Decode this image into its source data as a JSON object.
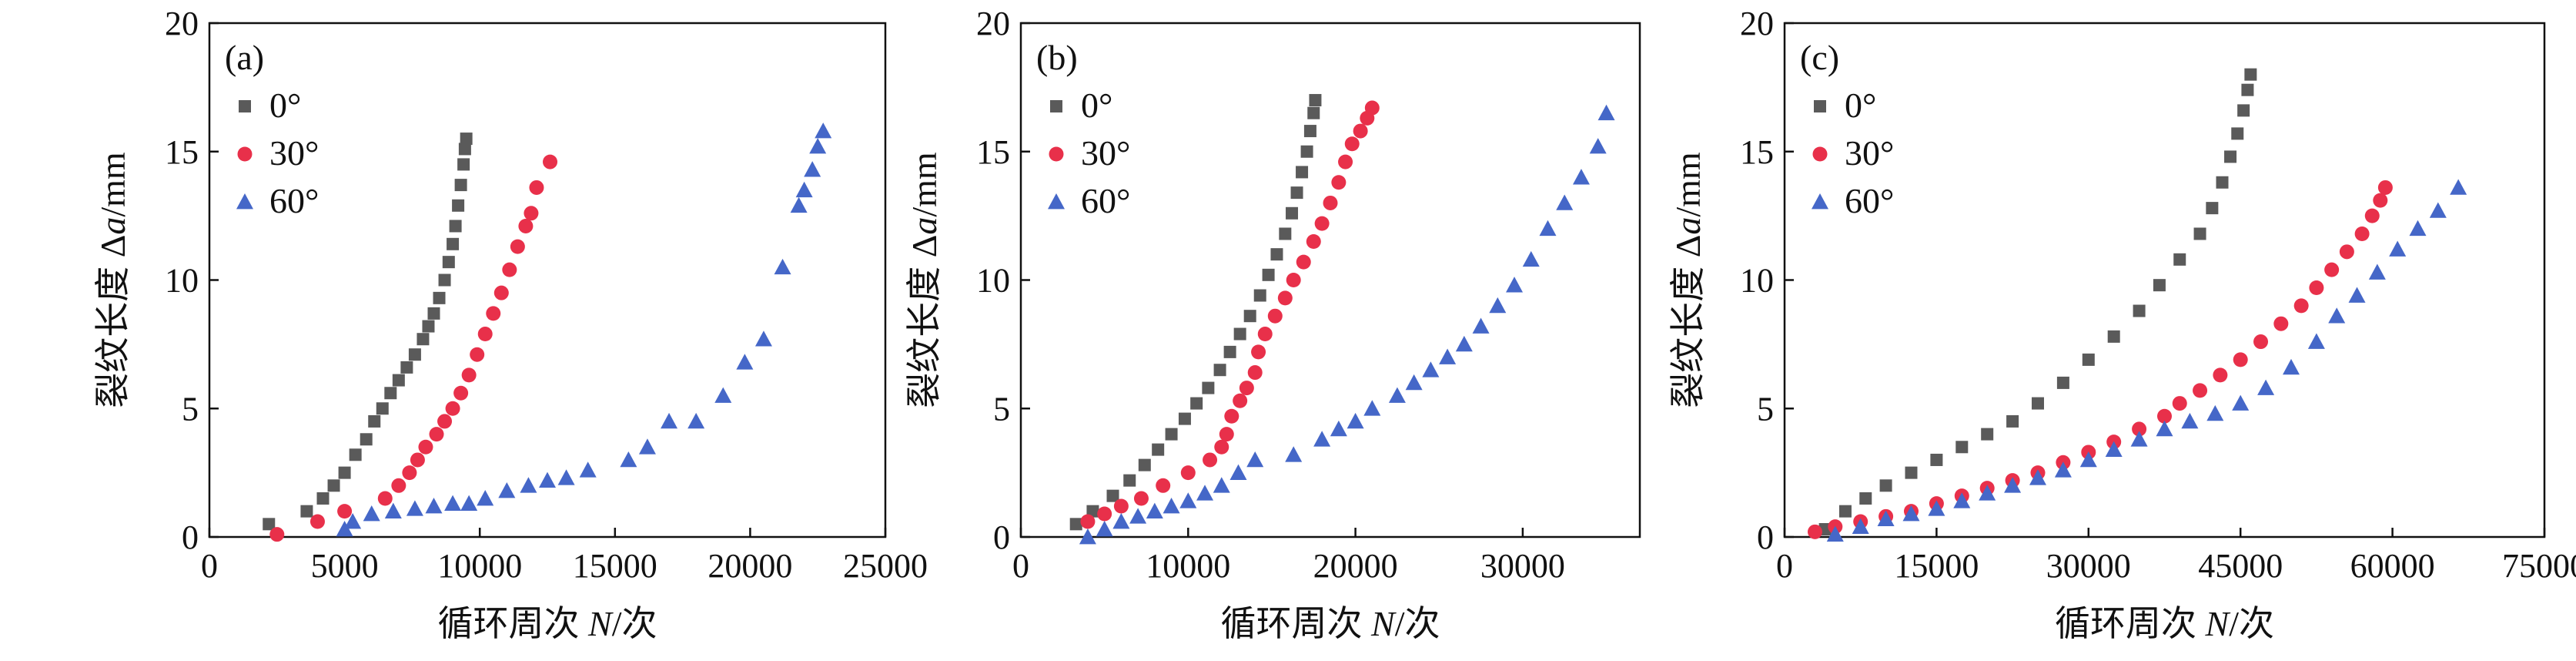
{
  "colors": {
    "s0": "#5a5a5a",
    "s30": "#e8304a",
    "s60": "#4567c8",
    "axis": "#111111"
  },
  "chart_data": [
    {
      "type": "scatter",
      "panel_label": "(a)",
      "xlabel_prefix": "循环周次 ",
      "xlabel_var": "N",
      "xlabel_suffix": "/次",
      "ylabel_prefix": "裂纹长度 Δ",
      "ylabel_var": "a",
      "ylabel_suffix": "/mm",
      "xlim": [
        0,
        25000
      ],
      "ylim": [
        0,
        20
      ],
      "xticks": [
        0,
        5000,
        10000,
        15000,
        20000,
        25000
      ],
      "yticks": [
        0,
        5,
        10,
        15,
        20
      ],
      "legend_position": "top-left",
      "series": [
        {
          "name": "0°",
          "marker": "square",
          "color": "#5a5a5a",
          "points": [
            [
              2200,
              0.5
            ],
            [
              3600,
              1.0
            ],
            [
              4200,
              1.5
            ],
            [
              4600,
              2.0
            ],
            [
              5000,
              2.5
            ],
            [
              5400,
              3.2
            ],
            [
              5800,
              3.8
            ],
            [
              6100,
              4.5
            ],
            [
              6400,
              5.0
            ],
            [
              6700,
              5.6
            ],
            [
              7000,
              6.1
            ],
            [
              7300,
              6.6
            ],
            [
              7600,
              7.1
            ],
            [
              7900,
              7.7
            ],
            [
              8100,
              8.2
            ],
            [
              8300,
              8.7
            ],
            [
              8500,
              9.3
            ],
            [
              8700,
              10.0
            ],
            [
              8850,
              10.7
            ],
            [
              9000,
              11.4
            ],
            [
              9100,
              12.1
            ],
            [
              9200,
              12.9
            ],
            [
              9300,
              13.7
            ],
            [
              9400,
              14.5
            ],
            [
              9450,
              15.1
            ],
            [
              9500,
              15.5
            ]
          ]
        },
        {
          "name": "30°",
          "marker": "circle",
          "color": "#e8304a",
          "points": [
            [
              2500,
              0.1
            ],
            [
              4000,
              0.6
            ],
            [
              5000,
              1.0
            ],
            [
              6500,
              1.5
            ],
            [
              7000,
              2.0
            ],
            [
              7400,
              2.5
            ],
            [
              7700,
              3.0
            ],
            [
              8000,
              3.5
            ],
            [
              8400,
              4.0
            ],
            [
              8700,
              4.5
            ],
            [
              9000,
              5.0
            ],
            [
              9300,
              5.6
            ],
            [
              9600,
              6.3
            ],
            [
              9900,
              7.1
            ],
            [
              10200,
              7.9
            ],
            [
              10500,
              8.7
            ],
            [
              10800,
              9.5
            ],
            [
              11100,
              10.4
            ],
            [
              11400,
              11.3
            ],
            [
              11700,
              12.1
            ],
            [
              11900,
              12.6
            ],
            [
              12100,
              13.6
            ],
            [
              12600,
              14.6
            ]
          ]
        },
        {
          "name": "60°",
          "marker": "triangle",
          "color": "#4567c8",
          "points": [
            [
              5000,
              0.3
            ],
            [
              5300,
              0.6
            ],
            [
              6000,
              0.9
            ],
            [
              6800,
              1.0
            ],
            [
              7600,
              1.1
            ],
            [
              8300,
              1.2
            ],
            [
              9000,
              1.3
            ],
            [
              9600,
              1.3
            ],
            [
              10200,
              1.5
            ],
            [
              11000,
              1.8
            ],
            [
              11800,
              2.0
            ],
            [
              12500,
              2.2
            ],
            [
              13200,
              2.3
            ],
            [
              14000,
              2.6
            ],
            [
              15500,
              3.0
            ],
            [
              16200,
              3.5
            ],
            [
              17000,
              4.5
            ],
            [
              18000,
              4.5
            ],
            [
              19000,
              5.5
            ],
            [
              19800,
              6.8
            ],
            [
              20500,
              7.7
            ],
            [
              21200,
              10.5
            ],
            [
              21800,
              12.9
            ],
            [
              22000,
              13.5
            ],
            [
              22300,
              14.3
            ],
            [
              22500,
              15.2
            ],
            [
              22700,
              15.8
            ]
          ]
        }
      ]
    },
    {
      "type": "scatter",
      "panel_label": "(b)",
      "xlabel_prefix": "循环周次 ",
      "xlabel_var": "N",
      "xlabel_suffix": "/次",
      "ylabel_prefix": "裂纹长度 Δ",
      "ylabel_var": "a",
      "ylabel_suffix": "/mm",
      "xlim": [
        0,
        37000
      ],
      "ylim": [
        0,
        20
      ],
      "xticks": [
        0,
        10000,
        20000,
        30000
      ],
      "yticks": [
        0,
        5,
        10,
        15,
        20
      ],
      "legend_position": "top-left",
      "series": [
        {
          "name": "0°",
          "marker": "square",
          "color": "#5a5a5a",
          "points": [
            [
              3300,
              0.5
            ],
            [
              4300,
              1.0
            ],
            [
              5500,
              1.6
            ],
            [
              6500,
              2.2
            ],
            [
              7400,
              2.8
            ],
            [
              8200,
              3.4
            ],
            [
              9000,
              4.0
            ],
            [
              9800,
              4.6
            ],
            [
              10500,
              5.2
            ],
            [
              11200,
              5.8
            ],
            [
              11900,
              6.5
            ],
            [
              12500,
              7.2
            ],
            [
              13100,
              7.9
            ],
            [
              13700,
              8.6
            ],
            [
              14300,
              9.4
            ],
            [
              14800,
              10.2
            ],
            [
              15300,
              11.0
            ],
            [
              15800,
              11.8
            ],
            [
              16200,
              12.6
            ],
            [
              16500,
              13.4
            ],
            [
              16800,
              14.2
            ],
            [
              17100,
              15.0
            ],
            [
              17300,
              15.8
            ],
            [
              17500,
              16.5
            ],
            [
              17600,
              17.0
            ]
          ]
        },
        {
          "name": "30°",
          "marker": "circle",
          "color": "#e8304a",
          "points": [
            [
              4000,
              0.6
            ],
            [
              5000,
              0.9
            ],
            [
              6000,
              1.2
            ],
            [
              7200,
              1.5
            ],
            [
              8500,
              2.0
            ],
            [
              10000,
              2.5
            ],
            [
              11300,
              3.0
            ],
            [
              12000,
              3.5
            ],
            [
              12300,
              4.0
            ],
            [
              12600,
              4.7
            ],
            [
              13100,
              5.3
            ],
            [
              13500,
              5.8
            ],
            [
              14000,
              6.4
            ],
            [
              14200,
              7.2
            ],
            [
              14600,
              7.9
            ],
            [
              15200,
              8.6
            ],
            [
              15800,
              9.3
            ],
            [
              16300,
              10.0
            ],
            [
              16900,
              10.7
            ],
            [
              17500,
              11.5
            ],
            [
              18000,
              12.2
            ],
            [
              18500,
              13.0
            ],
            [
              19000,
              13.8
            ],
            [
              19400,
              14.6
            ],
            [
              19800,
              15.3
            ],
            [
              20300,
              15.8
            ],
            [
              20700,
              16.3
            ],
            [
              21000,
              16.7
            ]
          ]
        },
        {
          "name": "60°",
          "marker": "triangle",
          "color": "#4567c8",
          "points": [
            [
              4000,
              0.0
            ],
            [
              5000,
              0.3
            ],
            [
              6000,
              0.6
            ],
            [
              7000,
              0.8
            ],
            [
              8000,
              1.0
            ],
            [
              9000,
              1.2
            ],
            [
              10000,
              1.4
            ],
            [
              11000,
              1.7
            ],
            [
              12000,
              2.0
            ],
            [
              13000,
              2.5
            ],
            [
              14000,
              3.0
            ],
            [
              16300,
              3.2
            ],
            [
              18000,
              3.8
            ],
            [
              19000,
              4.2
            ],
            [
              20000,
              4.5
            ],
            [
              21000,
              5.0
            ],
            [
              22500,
              5.5
            ],
            [
              23500,
              6.0
            ],
            [
              24500,
              6.5
            ],
            [
              25500,
              7.0
            ],
            [
              26500,
              7.5
            ],
            [
              27500,
              8.2
            ],
            [
              28500,
              9.0
            ],
            [
              29500,
              9.8
            ],
            [
              30500,
              10.8
            ],
            [
              31500,
              12.0
            ],
            [
              32500,
              13.0
            ],
            [
              33500,
              14.0
            ],
            [
              34500,
              15.2
            ],
            [
              35000,
              16.5
            ]
          ]
        }
      ]
    },
    {
      "type": "scatter",
      "panel_label": "(c)",
      "xlabel_prefix": "循环周次 ",
      "xlabel_var": "N",
      "xlabel_suffix": "/次",
      "ylabel_prefix": "裂纹长度 Δ",
      "ylabel_var": "a",
      "ylabel_suffix": "/mm",
      "xlim": [
        0,
        75000
      ],
      "ylim": [
        0,
        20
      ],
      "xticks": [
        0,
        15000,
        30000,
        45000,
        60000,
        75000
      ],
      "yticks": [
        0,
        5,
        10,
        15,
        20
      ],
      "legend_position": "top-left",
      "series": [
        {
          "name": "0°",
          "marker": "square",
          "color": "#5a5a5a",
          "points": [
            [
              4000,
              0.3
            ],
            [
              6000,
              1.0
            ],
            [
              8000,
              1.5
            ],
            [
              10000,
              2.0
            ],
            [
              12500,
              2.5
            ],
            [
              15000,
              3.0
            ],
            [
              17500,
              3.5
            ],
            [
              20000,
              4.0
            ],
            [
              22500,
              4.5
            ],
            [
              25000,
              5.2
            ],
            [
              27500,
              6.0
            ],
            [
              30000,
              6.9
            ],
            [
              32500,
              7.8
            ],
            [
              35000,
              8.8
            ],
            [
              37000,
              9.8
            ],
            [
              39000,
              10.8
            ],
            [
              41000,
              11.8
            ],
            [
              42200,
              12.8
            ],
            [
              43200,
              13.8
            ],
            [
              44000,
              14.8
            ],
            [
              44700,
              15.7
            ],
            [
              45300,
              16.6
            ],
            [
              45700,
              17.4
            ],
            [
              46000,
              18.0
            ]
          ]
        },
        {
          "name": "30°",
          "marker": "circle",
          "color": "#e8304a",
          "points": [
            [
              3000,
              0.2
            ],
            [
              5000,
              0.4
            ],
            [
              7500,
              0.6
            ],
            [
              10000,
              0.8
            ],
            [
              12500,
              1.0
            ],
            [
              15000,
              1.3
            ],
            [
              17500,
              1.6
            ],
            [
              20000,
              1.9
            ],
            [
              22500,
              2.2
            ],
            [
              25000,
              2.5
            ],
            [
              27500,
              2.9
            ],
            [
              30000,
              3.3
            ],
            [
              32500,
              3.7
            ],
            [
              35000,
              4.2
            ],
            [
              37500,
              4.7
            ],
            [
              39000,
              5.2
            ],
            [
              41000,
              5.7
            ],
            [
              43000,
              6.3
            ],
            [
              45000,
              6.9
            ],
            [
              47000,
              7.6
            ],
            [
              49000,
              8.3
            ],
            [
              51000,
              9.0
            ],
            [
              52500,
              9.7
            ],
            [
              54000,
              10.4
            ],
            [
              55500,
              11.1
            ],
            [
              57000,
              11.8
            ],
            [
              58000,
              12.5
            ],
            [
              58800,
              13.1
            ],
            [
              59300,
              13.6
            ]
          ]
        },
        {
          "name": "60°",
          "marker": "triangle",
          "color": "#4567c8",
          "points": [
            [
              5000,
              0.1
            ],
            [
              7500,
              0.4
            ],
            [
              10000,
              0.7
            ],
            [
              12500,
              0.9
            ],
            [
              15000,
              1.1
            ],
            [
              17500,
              1.4
            ],
            [
              20000,
              1.7
            ],
            [
              22500,
              2.0
            ],
            [
              25000,
              2.3
            ],
            [
              27500,
              2.6
            ],
            [
              30000,
              3.0
            ],
            [
              32500,
              3.4
            ],
            [
              35000,
              3.8
            ],
            [
              37500,
              4.2
            ],
            [
              40000,
              4.5
            ],
            [
              42500,
              4.8
            ],
            [
              45000,
              5.2
            ],
            [
              47500,
              5.8
            ],
            [
              50000,
              6.6
            ],
            [
              52500,
              7.6
            ],
            [
              54500,
              8.6
            ],
            [
              56500,
              9.4
            ],
            [
              58500,
              10.3
            ],
            [
              60500,
              11.2
            ],
            [
              62500,
              12.0
            ],
            [
              64500,
              12.7
            ],
            [
              66500,
              13.6
            ]
          ]
        }
      ]
    }
  ]
}
